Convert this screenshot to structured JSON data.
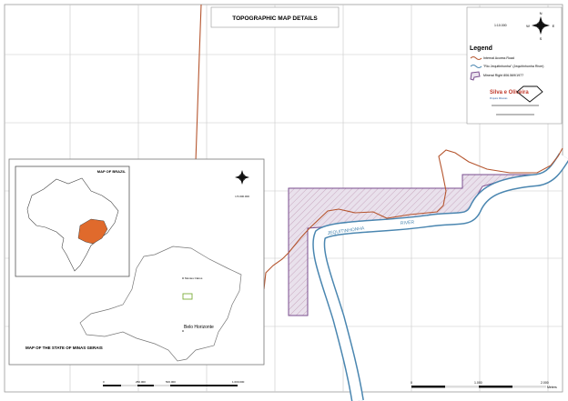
{
  "title": "TOPOGRAPHIC MAP DETAILS",
  "scale_main": "1:10.000",
  "legend": {
    "heading": "Legend",
    "items": [
      {
        "label": "Internal Access Road",
        "color": "#b5552e"
      },
      {
        "label": "\"Rio Jequitinhonha\" (Jequitinhonha River)",
        "color": "#4a86b0"
      },
      {
        "label": "Mineral Right 806.569/1977",
        "color": "#7a4e8f"
      }
    ]
  },
  "logo": {
    "name": "Silva e Oliveira",
    "tagline": "Projetos Minerais"
  },
  "river_labels": [
    "JEQUITINHONHA",
    "RIVER"
  ],
  "inset": {
    "brazil_title": "MAP OF BRAZIL",
    "state_title": "MAP OF THE STATE OF MINAS GERAIS",
    "scale": "1:5.000.000",
    "cities": [
      "Montes Claros",
      "Belo Horizonte"
    ],
    "scale_bar_labels": [
      "0",
      "250.000",
      "500.000",
      "1.000.000"
    ],
    "highlight_color": "#e06a2c"
  },
  "scale_bar": {
    "labels": [
      "0",
      "1.000",
      "2.000"
    ],
    "unit": "Meters"
  },
  "compass": {
    "n": "N",
    "s": "S",
    "e": "E",
    "w": "W"
  }
}
